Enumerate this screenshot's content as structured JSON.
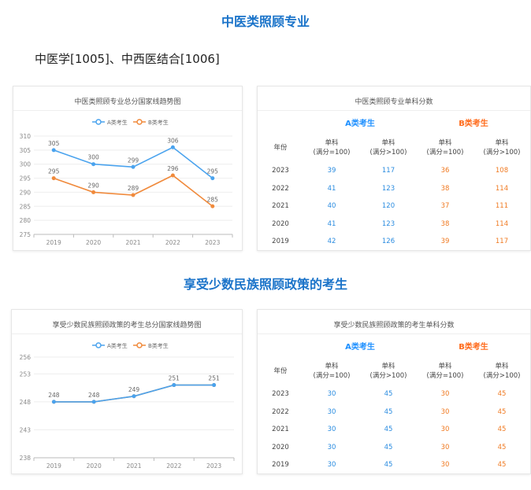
{
  "section1": {
    "title": "中医类照顾专业",
    "subtitle": "中医学[1005]、中西医结合[1006]",
    "table": {
      "title": "中医类照顾专业单科分数",
      "group_a": "A类考生",
      "group_b": "B类考生",
      "col_year": "年份",
      "col_single1": "单科",
      "col_single1_sub": "(满分=100)",
      "col_single2": "单科",
      "col_single2_sub": "(满分>100)",
      "rows": [
        {
          "year": "2023",
          "a1": "39",
          "a2": "117",
          "b1": "36",
          "b2": "108"
        },
        {
          "year": "2022",
          "a1": "41",
          "a2": "123",
          "b1": "38",
          "b2": "114"
        },
        {
          "year": "2021",
          "a1": "40",
          "a2": "120",
          "b1": "37",
          "b2": "111"
        },
        {
          "year": "2020",
          "a1": "41",
          "a2": "123",
          "b1": "38",
          "b2": "114"
        },
        {
          "year": "2019",
          "a1": "42",
          "a2": "126",
          "b1": "39",
          "b2": "117"
        }
      ]
    }
  },
  "section2": {
    "title": "享受少数民族照顾政策的考生",
    "table": {
      "title": "享受少数民族照顾政策的考生单科分数",
      "group_a": "A类考生",
      "group_b": "B类考生",
      "col_year": "年份",
      "col_single1": "单科",
      "col_single1_sub": "(满分=100)",
      "col_single2": "单科",
      "col_single2_sub": "(满分>100)",
      "rows": [
        {
          "year": "2023",
          "a1": "30",
          "a2": "45",
          "b1": "30",
          "b2": "45"
        },
        {
          "year": "2022",
          "a1": "30",
          "a2": "45",
          "b1": "30",
          "b2": "45"
        },
        {
          "year": "2021",
          "a1": "30",
          "a2": "45",
          "b1": "30",
          "b2": "45"
        },
        {
          "year": "2020",
          "a1": "30",
          "a2": "45",
          "b1": "30",
          "b2": "45"
        },
        {
          "year": "2019",
          "a1": "30",
          "a2": "45",
          "b1": "30",
          "b2": "45"
        }
      ]
    }
  },
  "colors": {
    "a": "#4aa3ee",
    "b": "#f08a3c",
    "axis": "#bbbbbb",
    "grid": "#eeeeee",
    "text": "#888888",
    "label": "#666666"
  },
  "chart_data": [
    {
      "type": "line",
      "title": "中医类照顾专业总分国家线趋势图",
      "x": [
        "2019",
        "2020",
        "2021",
        "2022",
        "2023"
      ],
      "series": [
        {
          "name": "A类考生",
          "values": [
            305,
            300,
            299,
            306,
            295
          ],
          "labels": [
            "305",
            "300",
            "299",
            "306",
            "295"
          ]
        },
        {
          "name": "B类考生",
          "values": [
            295,
            290,
            289,
            296,
            285
          ],
          "labels": [
            "295",
            "290",
            "289",
            "296",
            "285"
          ]
        }
      ],
      "yticks": [
        275,
        280,
        285,
        290,
        295,
        300,
        305,
        310
      ],
      "ytick_labels": [
        "275",
        "280",
        "285",
        "290",
        "295",
        "300",
        "305",
        "310"
      ],
      "ylim": [
        275,
        310
      ],
      "legend": "top",
      "grid": true
    },
    {
      "type": "line",
      "title": "享受少数民族照顾政策的考生总分国家线趋势图",
      "x": [
        "2019",
        "2020",
        "2021",
        "2022",
        "2023"
      ],
      "series": [
        {
          "name": "A类考生",
          "values": [
            248,
            248,
            249,
            251,
            251
          ],
          "labels": [
            "248",
            "248",
            "249",
            "251",
            "251"
          ]
        },
        {
          "name": "B类考生",
          "values": [
            248,
            248,
            249,
            251,
            251
          ],
          "labels": []
        }
      ],
      "yticks": [
        238,
        243,
        248,
        253,
        256
      ],
      "ytick_labels": [
        "238",
        "243",
        "248",
        "253",
        "256"
      ],
      "ylim": [
        238,
        256
      ],
      "legend": "top",
      "grid": true
    }
  ]
}
